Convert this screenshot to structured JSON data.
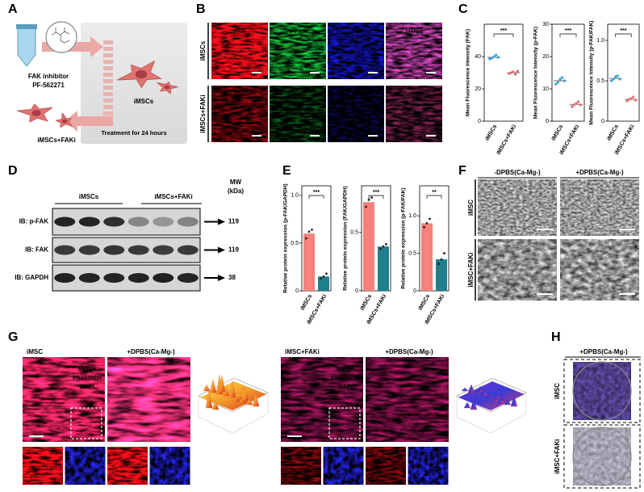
{
  "figure": {
    "panel_letters": [
      "A",
      "B",
      "C",
      "D",
      "E",
      "F",
      "G",
      "H"
    ],
    "a": {
      "inhibitor": "FAK inhibitor",
      "compound": "PF-562271",
      "control": "iMSCs",
      "treated": "iMSCs+FAKi",
      "treatment": "Treatment for 24 hours"
    },
    "b": {
      "channels": [
        "FAK",
        "p-FAK",
        "DAPI",
        "Merge"
      ],
      "rows": [
        "iMSCs",
        "iMSCs+FAKi"
      ]
    },
    "d": {
      "groups": [
        "iMSCs",
        "iMSCs+FAKi"
      ],
      "mw": "MW",
      "mw_unit": "(kDa)",
      "blots": [
        {
          "label": "IB: p-FAK",
          "kda": 119
        },
        {
          "label": "IB: FAK",
          "kda": 119
        },
        {
          "label": "IB: GAPDH",
          "kda": 38
        }
      ]
    },
    "f": {
      "columns": [
        "-DPBS(Ca-Mg-)",
        "+DPBS(Ca-Mg-)"
      ],
      "rows": [
        "iMSC",
        "iMSC+FAKi"
      ]
    },
    "g": {
      "sets": [
        {
          "group": "iMSC",
          "condition": "+DPBS(Ca-Mg-)",
          "stains": [
            "Merge",
            "Phalloidin",
            "DAPI"
          ]
        },
        {
          "group": "iMSC+FAKi",
          "condition": "+DPBS(Ca-Mg-)",
          "stains": [
            "Merge",
            "Phalloidin",
            "DAPI"
          ]
        }
      ]
    },
    "h": {
      "condition": "+DPBS(Ca-Mg-)",
      "rows": [
        "iMSC",
        "iMSC+FAKi"
      ]
    }
  },
  "chart_data": [
    {
      "type": "strip",
      "ylabel": "Mean Fluorescence Intensity (FAK)",
      "categories": [
        "iMSCs",
        "iMSCs+FAKi"
      ],
      "values": [
        39.5,
        30
      ],
      "points": [
        [
          38.5,
          39,
          40,
          41,
          39.5
        ],
        [
          29.5,
          30,
          30.5,
          29,
          31
        ]
      ],
      "colors": [
        "#3a9fd6",
        "#e46a6a"
      ],
      "ylim": [
        0,
        60
      ],
      "yticks": [
        0,
        20,
        40
      ],
      "significance": "***"
    },
    {
      "type": "strip",
      "ylabel": "Mean Fluorescence Intensity (p-FAK)",
      "categories": [
        "iMSCs",
        "iMSCs+FAKi"
      ],
      "values": [
        12.5,
        5.2
      ],
      "points": [
        [
          11.5,
          12,
          13,
          13.5,
          12.5
        ],
        [
          4.5,
          5,
          5.5,
          6,
          5
        ]
      ],
      "colors": [
        "#3a9fd6",
        "#e46a6a"
      ],
      "ylim": [
        0,
        30
      ],
      "yticks": [
        0,
        10,
        20,
        30
      ],
      "significance": "***"
    },
    {
      "type": "strip",
      "ylabel": "Mean Fluorescence Intensity (p-FAK/FAK)",
      "categories": [
        "iMSCs",
        "iMSCs+FAKi"
      ],
      "values": [
        0.53,
        0.27
      ],
      "points": [
        [
          0.5,
          0.52,
          0.55,
          0.56,
          0.52
        ],
        [
          0.25,
          0.27,
          0.28,
          0.3,
          0.26
        ]
      ],
      "colors": [
        "#3a9fd6",
        "#e46a6a"
      ],
      "ylim": [
        0,
        1.2
      ],
      "yticks": [
        0,
        0.5,
        {
          "value": 1,
          "label": "1.0"
        }
      ],
      "significance": "***"
    },
    {
      "type": "bar",
      "ylabel": "Relative protein expression (p-FAK/GAPDH)",
      "categories": [
        "iMSCs",
        "iMSCs+FAKi"
      ],
      "values": [
        0.6,
        0.15
      ],
      "points": [
        [
          0.55,
          0.62,
          0.64
        ],
        [
          0.13,
          0.15,
          0.18
        ]
      ],
      "colors": [
        "#f4827b",
        "#1f7f8c"
      ],
      "point_color": "#222222",
      "ylim": [
        0,
        1.1
      ],
      "yticks": [
        0,
        0.5,
        {
          "value": 1,
          "label": "1.0"
        }
      ],
      "significance": "***"
    },
    {
      "type": "bar",
      "ylabel": "Relative protein expression (FAK/GAPDH)",
      "categories": [
        "iMSCs",
        "iMSCs+FAKi"
      ],
      "values": [
        0.76,
        0.38
      ],
      "points": [
        [
          0.72,
          0.78,
          0.8
        ],
        [
          0.36,
          0.38,
          0.4
        ]
      ],
      "colors": [
        "#f4827b",
        "#1f7f8c"
      ],
      "point_color": "#222222",
      "ylim": [
        0,
        0.9
      ],
      "yticks": [
        0,
        0.5
      ],
      "significance": "***"
    },
    {
      "type": "bar",
      "ylabel": "Relative protein expression (p-FAK/FAK)",
      "categories": [
        "iMSCs",
        "iMSCs+FAKi"
      ],
      "values": [
        0.9,
        0.42
      ],
      "points": [
        [
          0.85,
          0.9,
          0.96
        ],
        [
          0.36,
          0.42,
          0.5
        ]
      ],
      "colors": [
        "#f4827b",
        "#1f7f8c"
      ],
      "point_color": "#222222",
      "ylim": [
        0,
        1.4
      ],
      "yticks": [
        0,
        0.5,
        {
          "value": 1,
          "label": "1.0"
        }
      ],
      "significance": "**"
    }
  ]
}
